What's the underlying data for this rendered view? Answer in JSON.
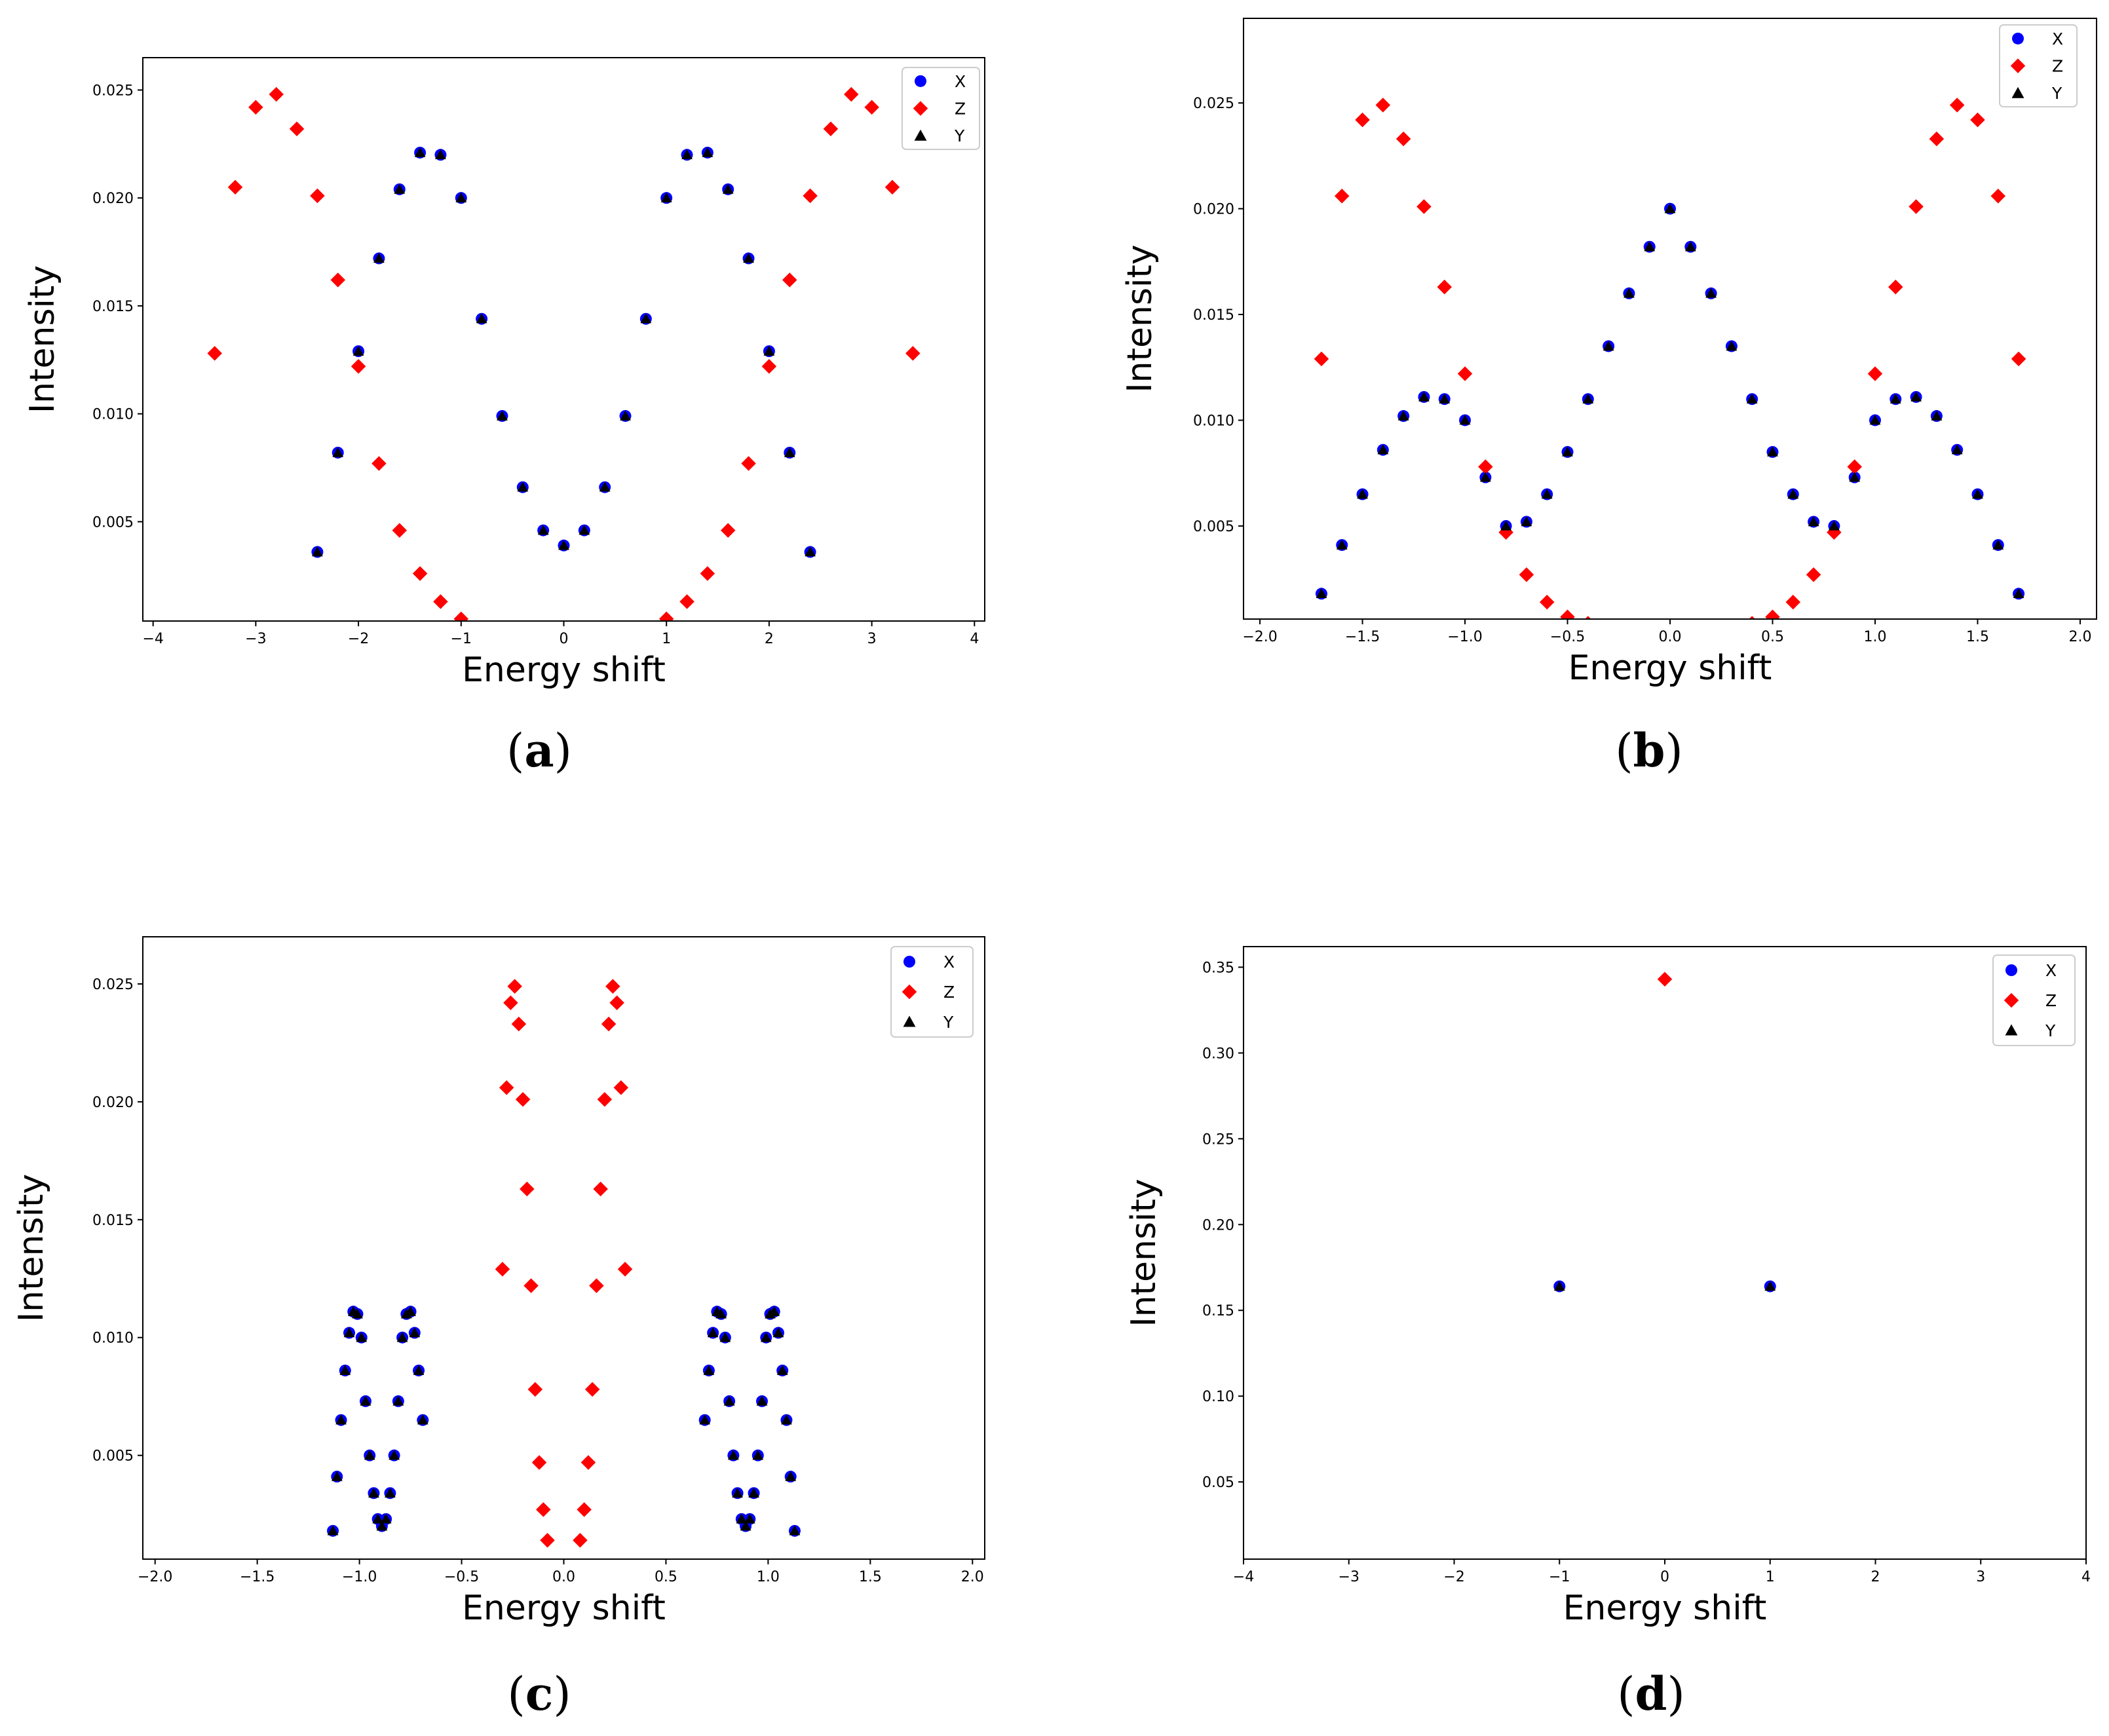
{
  "chart_data": [
    {
      "id": "a",
      "type": "scatter",
      "caption": "a",
      "xlabel": "Energy shift",
      "ylabel": "Intensity",
      "xlim": [
        -4.1,
        4.1
      ],
      "ylim": [
        0.0004,
        0.0265
      ],
      "xticks": [
        -4,
        -3,
        -2,
        -1,
        0,
        1,
        2,
        3,
        4
      ],
      "xtick_labels": [
        "−4",
        "−3",
        "−2",
        "−1",
        "0",
        "1",
        "2",
        "3",
        "4"
      ],
      "yticks": [
        0.005,
        0.01,
        0.015,
        0.02,
        0.025
      ],
      "ytick_labels": [
        "0.005",
        "0.010",
        "0.015",
        "0.020",
        "0.025"
      ],
      "legend": {
        "position": "top-right",
        "entries": [
          "X",
          "Z",
          "Y"
        ]
      },
      "series": [
        {
          "name": "X",
          "color": "#0000ff",
          "marker": "circle",
          "x": [
            -2.4,
            -2.2,
            -2.0,
            -1.8,
            -1.6,
            -1.4,
            -1.2,
            -1.0,
            -0.8,
            -0.6,
            -0.4,
            -0.2,
            0.0,
            0.2,
            0.4,
            0.6,
            0.8,
            1.0,
            1.2,
            1.4,
            1.6,
            1.8,
            2.0,
            2.2,
            2.4
          ],
          "y": [
            0.0036,
            0.0082,
            0.0129,
            0.0172,
            0.0204,
            0.0221,
            0.022,
            0.02,
            0.0144,
            0.0099,
            0.0066,
            0.0046,
            0.0039,
            0.0046,
            0.0066,
            0.0099,
            0.0144,
            0.02,
            0.022,
            0.0221,
            0.0204,
            0.0172,
            0.0129,
            0.0082,
            0.0036
          ]
        },
        {
          "name": "Z",
          "color": "#ff0000",
          "marker": "diamond",
          "x": [
            -3.4,
            -3.2,
            -3.0,
            -2.8,
            -2.6,
            -2.4,
            -2.2,
            -2.0,
            -1.8,
            -1.6,
            -1.4,
            -1.2,
            -1.0,
            1.0,
            1.2,
            1.4,
            1.6,
            1.8,
            2.0,
            2.2,
            2.4,
            2.6,
            2.8,
            3.0,
            3.2,
            3.4
          ],
          "y": [
            0.0128,
            0.0205,
            0.0242,
            0.0248,
            0.0232,
            0.0201,
            0.0162,
            0.0122,
            0.0077,
            0.0046,
            0.0026,
            0.0013,
            0.0005,
            0.0005,
            0.0013,
            0.0026,
            0.0046,
            0.0077,
            0.0122,
            0.0162,
            0.0201,
            0.0232,
            0.0248,
            0.0242,
            0.0205,
            0.0128
          ]
        },
        {
          "name": "Y",
          "color": "#000000",
          "marker": "triangle",
          "x": [
            -2.4,
            -2.2,
            -2.0,
            -1.8,
            -1.6,
            -1.4,
            -1.2,
            -1.0,
            -0.8,
            -0.6,
            -0.4,
            -0.2,
            0.0,
            0.2,
            0.4,
            0.6,
            0.8,
            1.0,
            1.2,
            1.4,
            1.6,
            1.8,
            2.0,
            2.2,
            2.4
          ],
          "y": [
            0.0036,
            0.0082,
            0.0129,
            0.0172,
            0.0204,
            0.0221,
            0.022,
            0.02,
            0.0144,
            0.0099,
            0.0066,
            0.0046,
            0.0039,
            0.0046,
            0.0066,
            0.0099,
            0.0144,
            0.02,
            0.022,
            0.0221,
            0.0204,
            0.0172,
            0.0129,
            0.0082,
            0.0036
          ]
        }
      ]
    },
    {
      "id": "b",
      "type": "scatter",
      "caption": "b",
      "xlabel": "Energy shift",
      "ylabel": "Intensity",
      "xlim": [
        -2.08,
        2.08
      ],
      "ylim": [
        0.0006,
        0.029
      ],
      "xticks": [
        -2.0,
        -1.5,
        -1.0,
        -0.5,
        0.0,
        0.5,
        1.0,
        1.5,
        2.0
      ],
      "xtick_labels": [
        "−2.0",
        "−1.5",
        "−1.0",
        "−0.5",
        "0.0",
        "0.5",
        "1.0",
        "1.5",
        "2.0"
      ],
      "yticks": [
        0.005,
        0.01,
        0.015,
        0.02,
        0.025
      ],
      "ytick_labels": [
        "0.005",
        "0.010",
        "0.015",
        "0.020",
        "0.025"
      ],
      "legend": {
        "position": "top-right",
        "entries": [
          "X",
          "Z",
          "Y"
        ]
      },
      "series": [
        {
          "name": "X",
          "color": "#0000ff",
          "marker": "circle",
          "x": [
            -1.7,
            -1.6,
            -1.5,
            -1.4,
            -1.3,
            -1.2,
            -1.1,
            -1.0,
            -0.9,
            -0.8,
            -0.7,
            -0.6,
            -0.5,
            -0.4,
            -0.3,
            -0.2,
            -0.1,
            0.0,
            0.1,
            0.2,
            0.3,
            0.4,
            0.5,
            0.6,
            0.7,
            0.8,
            0.9,
            1.0,
            1.1,
            1.2,
            1.3,
            1.4,
            1.5,
            1.6,
            1.7
          ],
          "y": [
            0.0018,
            0.0041,
            0.0065,
            0.0086,
            0.0102,
            0.0111,
            0.011,
            0.01,
            0.0073,
            0.005,
            0.0052,
            0.0065,
            0.0085,
            0.011,
            0.0135,
            0.016,
            0.0182,
            0.02,
            0.0182,
            0.016,
            0.0135,
            0.011,
            0.0085,
            0.0065,
            0.0052,
            0.005,
            0.0073,
            0.01,
            0.011,
            0.0111,
            0.0102,
            0.0086,
            0.0065,
            0.0041,
            0.0018
          ]
        },
        {
          "name": "Z",
          "color": "#ff0000",
          "marker": "diamond",
          "x": [
            -1.7,
            -1.6,
            -1.5,
            -1.4,
            -1.3,
            -1.2,
            -1.1,
            -1.0,
            -0.9,
            -0.8,
            -0.7,
            -0.6,
            -0.5,
            -0.4,
            0.4,
            0.5,
            0.6,
            0.7,
            0.8,
            0.9,
            1.0,
            1.1,
            1.2,
            1.3,
            1.4,
            1.5,
            1.6,
            1.7
          ],
          "y": [
            0.0129,
            0.0206,
            0.0242,
            0.0249,
            0.0233,
            0.0201,
            0.0163,
            0.0122,
            0.0078,
            0.0047,
            0.0027,
            0.0014,
            0.0007,
            0.0004,
            0.0004,
            0.0007,
            0.0014,
            0.0027,
            0.0047,
            0.0078,
            0.0122,
            0.0163,
            0.0201,
            0.0233,
            0.0249,
            0.0242,
            0.0206,
            0.0129
          ]
        },
        {
          "name": "Y",
          "color": "#000000",
          "marker": "triangle",
          "x": [
            -1.7,
            -1.6,
            -1.5,
            -1.4,
            -1.3,
            -1.2,
            -1.1,
            -1.0,
            -0.9,
            -0.8,
            -0.7,
            -0.6,
            -0.5,
            -0.4,
            -0.3,
            -0.2,
            -0.1,
            0.0,
            0.1,
            0.2,
            0.3,
            0.4,
            0.5,
            0.6,
            0.7,
            0.8,
            0.9,
            1.0,
            1.1,
            1.2,
            1.3,
            1.4,
            1.5,
            1.6,
            1.7
          ],
          "y": [
            0.0018,
            0.0041,
            0.0065,
            0.0086,
            0.0102,
            0.0111,
            0.011,
            0.01,
            0.0073,
            0.005,
            0.0052,
            0.0065,
            0.0085,
            0.011,
            0.0135,
            0.016,
            0.0182,
            0.02,
            0.0182,
            0.016,
            0.0135,
            0.011,
            0.0085,
            0.0065,
            0.0052,
            0.005,
            0.0073,
            0.01,
            0.011,
            0.0111,
            0.0102,
            0.0086,
            0.0065,
            0.0041,
            0.0018
          ]
        }
      ]
    },
    {
      "id": "c",
      "type": "scatter",
      "caption": "c",
      "xlabel": "Energy shift",
      "ylabel": "Intensity",
      "xlim": [
        -2.06,
        2.06
      ],
      "ylim": [
        0.0006,
        0.027
      ],
      "xticks": [
        -2.0,
        -1.5,
        -1.0,
        -0.5,
        0.0,
        0.5,
        1.0,
        1.5,
        2.0
      ],
      "xtick_labels": [
        "−2.0",
        "−1.5",
        "−1.0",
        "−0.5",
        "0.0",
        "0.5",
        "1.0",
        "1.5",
        "2.0"
      ],
      "yticks": [
        0.005,
        0.01,
        0.015,
        0.02,
        0.025
      ],
      "ytick_labels": [
        "0.005",
        "0.010",
        "0.015",
        "0.020",
        "0.025"
      ],
      "legend": {
        "position": "top-right",
        "entries": [
          "X",
          "Z",
          "Y"
        ]
      },
      "series": [
        {
          "name": "X",
          "color": "#0000ff",
          "marker": "circle",
          "x": [
            -1.13,
            -1.11,
            -1.09,
            -1.07,
            -1.05,
            -1.03,
            -1.01,
            -0.99,
            -0.97,
            -0.95,
            -0.93,
            -0.91,
            -0.89,
            -0.87,
            -0.85,
            -0.83,
            -0.81,
            -0.79,
            -0.77,
            -0.75,
            -0.73,
            -0.71,
            -0.69,
            0.69,
            0.71,
            0.73,
            0.75,
            0.77,
            0.79,
            0.81,
            0.83,
            0.85,
            0.87,
            0.89,
            0.91,
            0.93,
            0.95,
            0.97,
            0.99,
            1.01,
            1.03,
            1.05,
            1.07,
            1.09,
            1.11,
            1.13
          ],
          "y": [
            0.0018,
            0.0041,
            0.0065,
            0.0086,
            0.0102,
            0.0111,
            0.011,
            0.01,
            0.0073,
            0.005,
            0.0034,
            0.0023,
            0.002,
            0.0023,
            0.0034,
            0.005,
            0.0073,
            0.01,
            0.011,
            0.0111,
            0.0102,
            0.0086,
            0.0065,
            0.0065,
            0.0086,
            0.0102,
            0.0111,
            0.011,
            0.01,
            0.0073,
            0.005,
            0.0034,
            0.0023,
            0.002,
            0.0023,
            0.0034,
            0.005,
            0.0073,
            0.01,
            0.011,
            0.0111,
            0.0102,
            0.0086,
            0.0065,
            0.0041,
            0.0018
          ]
        },
        {
          "name": "Z",
          "color": "#ff0000",
          "marker": "diamond",
          "x": [
            -0.3,
            -0.28,
            -0.26,
            -0.24,
            -0.22,
            -0.2,
            -0.18,
            -0.16,
            -0.14,
            -0.12,
            -0.1,
            -0.08,
            0.08,
            0.1,
            0.12,
            0.14,
            0.16,
            0.18,
            0.2,
            0.22,
            0.24,
            0.26,
            0.28,
            0.3
          ],
          "y": [
            0.0129,
            0.0206,
            0.0242,
            0.0249,
            0.0233,
            0.0201,
            0.0163,
            0.0122,
            0.0078,
            0.0047,
            0.0027,
            0.0014,
            0.0014,
            0.0027,
            0.0047,
            0.0078,
            0.0122,
            0.0163,
            0.0201,
            0.0233,
            0.0249,
            0.0242,
            0.0206,
            0.0129
          ]
        },
        {
          "name": "Y",
          "color": "#000000",
          "marker": "triangle",
          "x": [
            -1.13,
            -1.11,
            -1.09,
            -1.07,
            -1.05,
            -1.03,
            -1.01,
            -0.99,
            -0.97,
            -0.95,
            -0.93,
            -0.91,
            -0.89,
            -0.87,
            -0.85,
            -0.83,
            -0.81,
            -0.79,
            -0.77,
            -0.75,
            -0.73,
            -0.71,
            -0.69,
            0.69,
            0.71,
            0.73,
            0.75,
            0.77,
            0.79,
            0.81,
            0.83,
            0.85,
            0.87,
            0.89,
            0.91,
            0.93,
            0.95,
            0.97,
            0.99,
            1.01,
            1.03,
            1.05,
            1.07,
            1.09,
            1.11,
            1.13
          ],
          "y": [
            0.0018,
            0.0041,
            0.0065,
            0.0086,
            0.0102,
            0.0111,
            0.011,
            0.01,
            0.0073,
            0.005,
            0.0034,
            0.0023,
            0.002,
            0.0023,
            0.0034,
            0.005,
            0.0073,
            0.01,
            0.011,
            0.0111,
            0.0102,
            0.0086,
            0.0065,
            0.0065,
            0.0086,
            0.0102,
            0.0111,
            0.011,
            0.01,
            0.0073,
            0.005,
            0.0034,
            0.0023,
            0.002,
            0.0023,
            0.0034,
            0.005,
            0.0073,
            0.01,
            0.011,
            0.0111,
            0.0102,
            0.0086,
            0.0065,
            0.0041,
            0.0018
          ]
        }
      ]
    },
    {
      "id": "d",
      "type": "scatter",
      "caption": "d",
      "xlabel": "Energy shift",
      "ylabel": "Intensity",
      "xlim": [
        -4.0,
        4.0
      ],
      "ylim": [
        0.005,
        0.362
      ],
      "xticks": [
        -4,
        -3,
        -2,
        -1,
        0,
        1,
        2,
        3,
        4
      ],
      "xtick_labels": [
        "−4",
        "−3",
        "−2",
        "−1",
        "0",
        "1",
        "2",
        "3",
        "4"
      ],
      "yticks": [
        0.05,
        0.1,
        0.15,
        0.2,
        0.25,
        0.3,
        0.35
      ],
      "ytick_labels": [
        "0.05",
        "0.10",
        "0.15",
        "0.20",
        "0.25",
        "0.30",
        "0.35"
      ],
      "legend": {
        "position": "top-right",
        "entries": [
          "X",
          "Z",
          "Y"
        ]
      },
      "series": [
        {
          "name": "X",
          "color": "#0000ff",
          "marker": "circle",
          "x": [
            -1,
            1
          ],
          "y": [
            0.164,
            0.164
          ]
        },
        {
          "name": "Z",
          "color": "#ff0000",
          "marker": "diamond",
          "x": [
            0
          ],
          "y": [
            0.343
          ]
        },
        {
          "name": "Y",
          "color": "#000000",
          "marker": "triangle",
          "x": [
            -1,
            1
          ],
          "y": [
            0.164,
            0.164
          ]
        }
      ]
    }
  ]
}
